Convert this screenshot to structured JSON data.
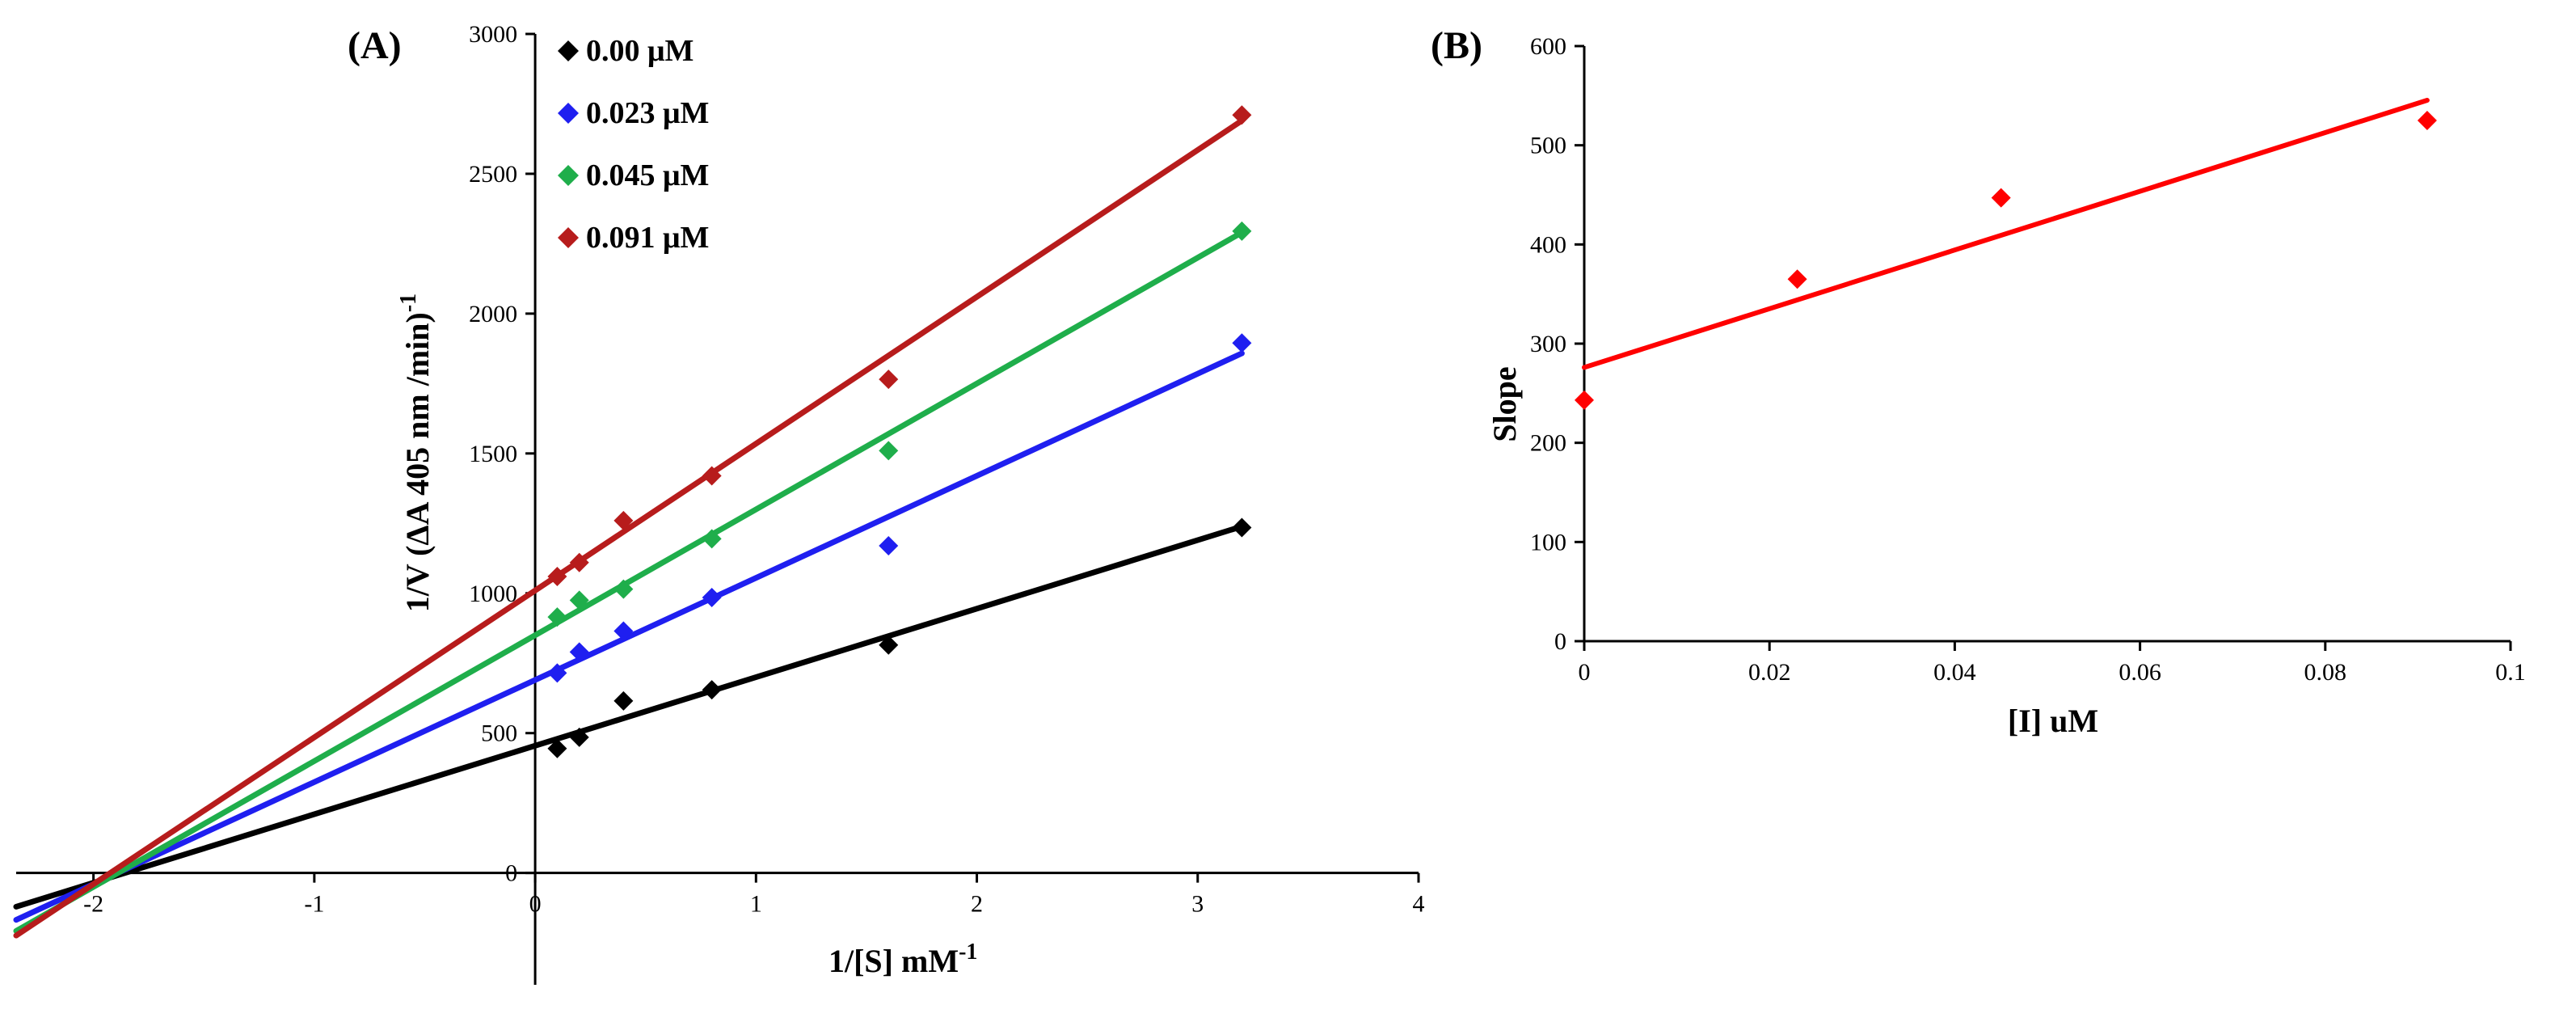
{
  "chart_data": [
    {
      "panel_label": "(A)",
      "type": "scatter",
      "xlabel": "1/[S] mM",
      "xlabel_sup": "-1",
      "ylabel": "1/V (ΔA 405 nm /min)",
      "ylabel_sup": "-1",
      "xlim": [
        -2.35,
        4
      ],
      "ylim": [
        -400,
        3000
      ],
      "x_ticks": [
        -2,
        -1,
        0,
        1,
        2,
        3,
        4
      ],
      "x_tick_labels": [
        "-2",
        "-1",
        "0",
        "1",
        "2",
        "3",
        "4"
      ],
      "y_ticks": [
        0,
        500,
        1000,
        1500,
        2000,
        2500,
        3000
      ],
      "y_tick_labels": [
        "0",
        "500",
        "1000",
        "1500",
        "2000",
        "2500",
        "3000"
      ],
      "legend_position": "top-left inside",
      "series": [
        {
          "name": "0.00 μM",
          "color": "#000000",
          "x": [
            0.1,
            0.2,
            0.4,
            0.8,
            1.6,
            3.2
          ],
          "y": [
            445,
            485,
            615,
            655,
            815,
            1235
          ],
          "fit": {
            "slope": 245,
            "intercept": 455
          }
        },
        {
          "name": "0.023 μM",
          "color": "#1f1ff0",
          "x": [
            0.1,
            0.2,
            0.4,
            0.8,
            1.6,
            3.2
          ],
          "y": [
            715,
            790,
            865,
            985,
            1170,
            1895
          ],
          "fit": {
            "slope": 365,
            "intercept": 690
          }
        },
        {
          "name": "0.045 μM",
          "color": "#1fae4b",
          "x": [
            0.1,
            0.2,
            0.4,
            0.8,
            1.6,
            3.2
          ],
          "y": [
            915,
            975,
            1015,
            1195,
            1510,
            2295
          ],
          "fit": {
            "slope": 450,
            "intercept": 850
          }
        },
        {
          "name": "0.091 μM",
          "color": "#b71c1c",
          "x": [
            0.1,
            0.2,
            0.4,
            0.8,
            1.6,
            3.2
          ],
          "y": [
            1060,
            1110,
            1260,
            1420,
            1765,
            2710
          ],
          "fit": {
            "slope": 525,
            "intercept": 1010
          }
        }
      ]
    },
    {
      "panel_label": "(B)",
      "type": "scatter",
      "xlabel": "[I] uM",
      "ylabel": "Slope",
      "xlim": [
        0,
        0.1
      ],
      "ylim": [
        0,
        600
      ],
      "x_ticks": [
        0,
        0.02,
        0.04,
        0.06,
        0.08,
        0.1
      ],
      "x_tick_labels": [
        "0",
        "0.02",
        "0.04",
        "0.06",
        "0.08",
        "0.1"
      ],
      "y_ticks": [
        0,
        100,
        200,
        300,
        400,
        500,
        600
      ],
      "y_tick_labels": [
        "0",
        "100",
        "200",
        "300",
        "400",
        "500",
        "600"
      ],
      "series": [
        {
          "name": "Slope",
          "color": "#ff0000",
          "x": [
            0,
            0.023,
            0.045,
            0.091
          ],
          "y": [
            243,
            365,
            447,
            525
          ],
          "fit": {
            "slope": 2960,
            "intercept": 276
          }
        }
      ]
    }
  ]
}
